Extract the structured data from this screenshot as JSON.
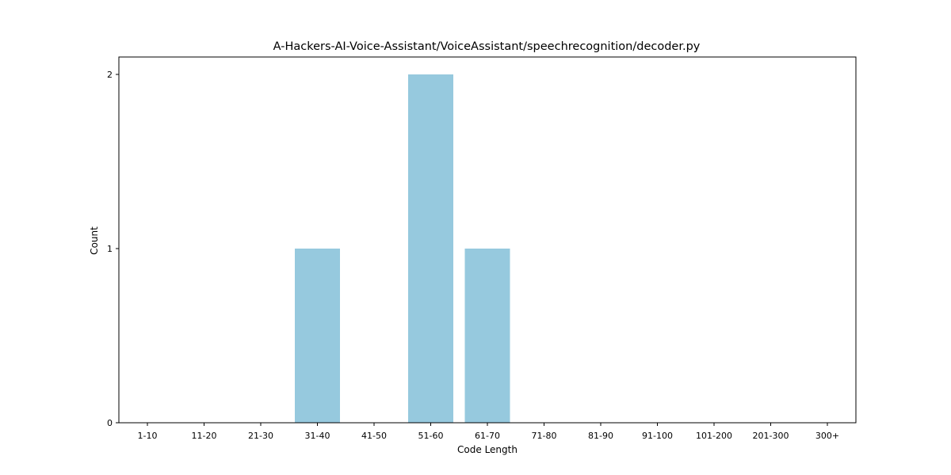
{
  "chart_data": {
    "type": "bar",
    "title": "A-Hackers-AI-Voice-Assistant/VoiceAssistant/speechrecognition/decoder.py",
    "xlabel": "Code Length",
    "ylabel": "Count",
    "categories": [
      "1-10",
      "11-20",
      "21-30",
      "31-40",
      "41-50",
      "51-60",
      "61-70",
      "71-80",
      "81-90",
      "91-100",
      "101-200",
      "201-300",
      "300+"
    ],
    "values": [
      0,
      0,
      0,
      1,
      0,
      2,
      1,
      0,
      0,
      0,
      0,
      0,
      0
    ],
    "yticks": [
      0,
      1,
      2
    ],
    "ylim": [
      0,
      2.1
    ],
    "bar_color": "#96c9de",
    "grid": false,
    "legend": "none"
  }
}
